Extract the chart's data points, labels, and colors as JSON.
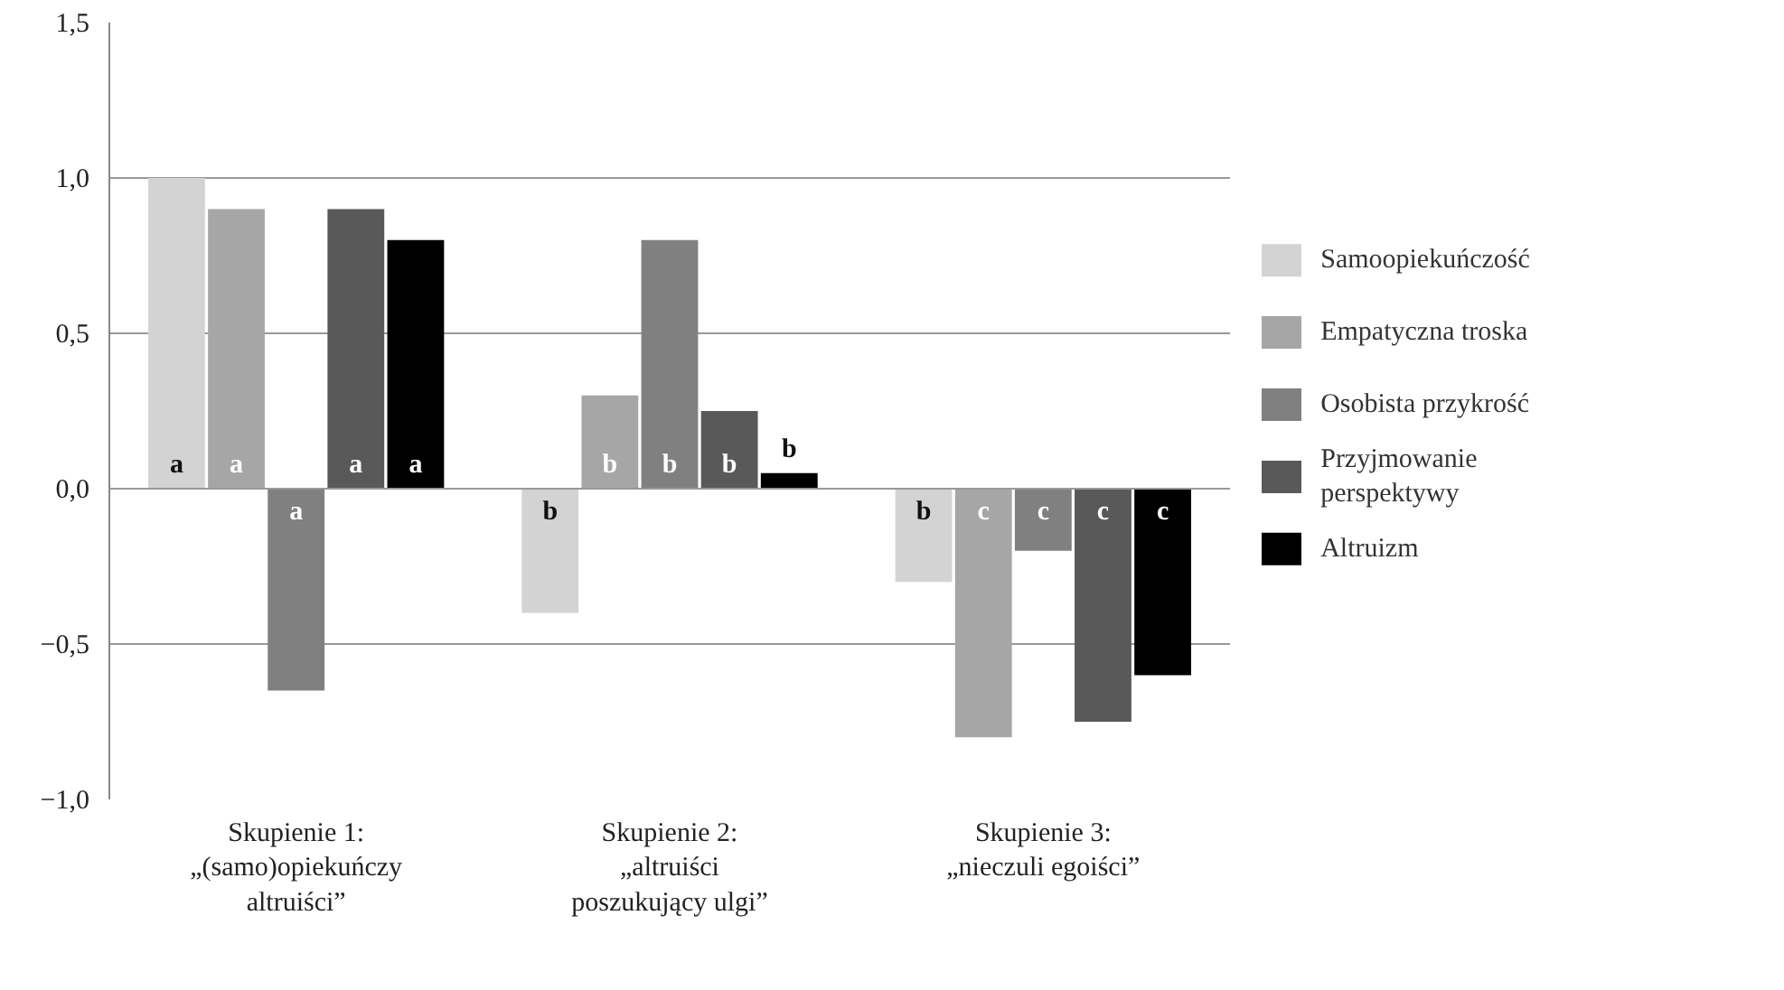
{
  "chart_data": {
    "type": "bar",
    "categories": [
      "Skupienie 1:\n„(samo)opiekuńczy\naltruiści”",
      "Skupienie 2:\n„altruiści\nposzukujący ulgi”",
      "Skupienie 3:\n„nieczuli egoiści”"
    ],
    "series": [
      {
        "name": "Samoopiekuńczość",
        "color": "#d3d3d3",
        "values": [
          1.0,
          -0.4,
          -0.3
        ],
        "value_labels": [
          "a",
          "b",
          "b"
        ]
      },
      {
        "name": "Empatyczna troska",
        "color": "#a6a6a6",
        "values": [
          0.9,
          0.3,
          -0.8
        ],
        "value_labels": [
          "a",
          "b",
          "c"
        ]
      },
      {
        "name": "Osobista przykrość",
        "color": "#808080",
        "values": [
          -0.65,
          0.8,
          -0.2
        ],
        "value_labels": [
          "a",
          "b",
          "c"
        ]
      },
      {
        "name": "Przyjmowanie\nperspektywy",
        "color": "#595959",
        "values": [
          0.9,
          0.25,
          -0.75
        ],
        "value_labels": [
          "a",
          "b",
          "c"
        ]
      },
      {
        "name": "Altruizm",
        "color": "#000000",
        "values": [
          0.8,
          0.05,
          -0.6
        ],
        "value_labels": [
          "a",
          "b",
          "c"
        ]
      }
    ],
    "ylim": [
      -1.0,
      1.5
    ],
    "yticks": [
      {
        "value": -1.0,
        "label": "−1,0"
      },
      {
        "value": -0.5,
        "label": "−0,5"
      },
      {
        "value": 0.0,
        "label": "0,0"
      },
      {
        "value": 0.5,
        "label": "0,5"
      },
      {
        "value": 1.0,
        "label": "1,0"
      },
      {
        "value": 1.5,
        "label": "1,5"
      }
    ],
    "grid": "y",
    "legend": "right"
  }
}
